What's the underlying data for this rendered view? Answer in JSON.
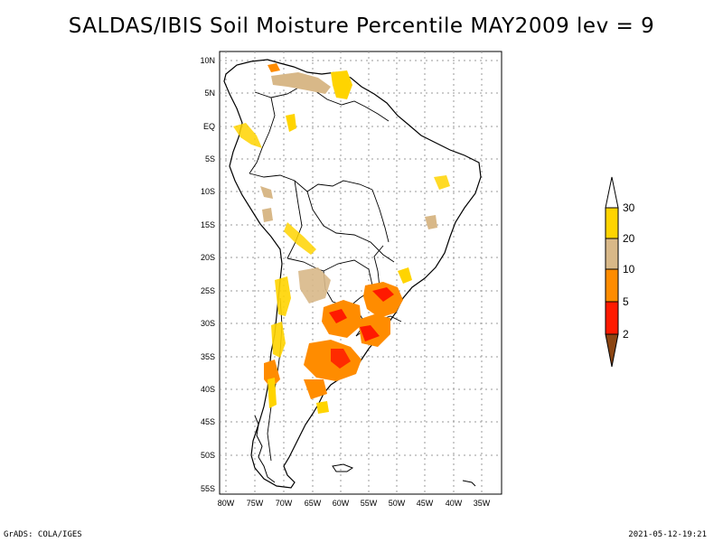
{
  "title": "SALDAS/IBIS Soil Moisture Percentile MAY2009 lev = 9",
  "y_ticks": [
    "10N",
    "5N",
    "EQ",
    "5S",
    "10S",
    "15S",
    "20S",
    "25S",
    "30S",
    "35S",
    "40S",
    "45S",
    "50S",
    "55S"
  ],
  "x_ticks": [
    "80W",
    "75W",
    "70W",
    "65W",
    "60W",
    "55W",
    "50W",
    "45W",
    "40W",
    "35W"
  ],
  "legend": {
    "labels": [
      "30",
      "20",
      "10",
      "5",
      "2"
    ],
    "colors": {
      "above_30": "#ffffff",
      "20_30": "#ffd400",
      "10_20": "#d8b888",
      "5_10": "#ff8c00",
      "2_5": "#ff1a00",
      "below_2": "#8b4513"
    }
  },
  "footer": {
    "left": "GrADS: COLA/IGES",
    "right": "2021-05-12-19:21"
  }
}
